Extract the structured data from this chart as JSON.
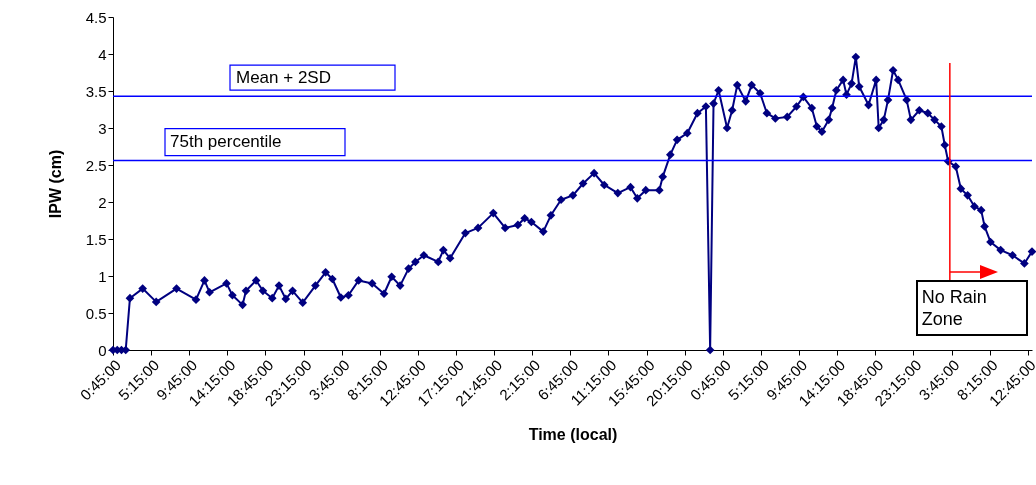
{
  "chart_data": {
    "type": "line",
    "xlabel": "Time (local)",
    "ylabel": "IPW (cm)",
    "marker": "diamond",
    "line_style": "solid",
    "xlim": [
      "2000-01-01T00:45",
      "2000-01-05T13:15"
    ],
    "ylim": [
      0,
      4.5
    ],
    "yticks": [
      0,
      0.5,
      1,
      1.5,
      2,
      2.5,
      3,
      3.5,
      4,
      4.5
    ],
    "xticks": [
      {
        "value": "2000-01-01T00:45",
        "label": "0:45:00"
      },
      {
        "value": "2000-01-01T05:15",
        "label": "5:15:00"
      },
      {
        "value": "2000-01-01T09:45",
        "label": "9:45:00"
      },
      {
        "value": "2000-01-01T14:15",
        "label": "14:15:00"
      },
      {
        "value": "2000-01-01T18:45",
        "label": "18:45:00"
      },
      {
        "value": "2000-01-01T23:15",
        "label": "23:15:00"
      },
      {
        "value": "2000-01-02T03:45",
        "label": "3:45:00"
      },
      {
        "value": "2000-01-02T08:15",
        "label": "8:15:00"
      },
      {
        "value": "2000-01-02T12:45",
        "label": "12:45:00"
      },
      {
        "value": "2000-01-02T17:15",
        "label": "17:15:00"
      },
      {
        "value": "2000-01-02T21:45",
        "label": "21:45:00"
      },
      {
        "value": "2000-01-03T02:15",
        "label": "2:15:00"
      },
      {
        "value": "2000-01-03T06:45",
        "label": "6:45:00"
      },
      {
        "value": "2000-01-03T11:15",
        "label": "11:15:00"
      },
      {
        "value": "2000-01-03T15:45",
        "label": "15:45:00"
      },
      {
        "value": "2000-01-03T20:15",
        "label": "20:15:00"
      },
      {
        "value": "2000-01-04T00:45",
        "label": "0:45:00"
      },
      {
        "value": "2000-01-04T05:15",
        "label": "5:15:00"
      },
      {
        "value": "2000-01-04T09:45",
        "label": "9:45:00"
      },
      {
        "value": "2000-01-04T14:15",
        "label": "14:15:00"
      },
      {
        "value": "2000-01-04T18:45",
        "label": "18:45:00"
      },
      {
        "value": "2000-01-04T23:15",
        "label": "23:15:00"
      },
      {
        "value": "2000-01-05T03:45",
        "label": "3:45:00"
      },
      {
        "value": "2000-01-05T08:15",
        "label": "8:15:00"
      },
      {
        "value": "2000-01-05T12:45",
        "label": "12:45:00"
      }
    ],
    "series": [
      {
        "color": "#000080",
        "x": [
          "2000-01-01T00:45",
          "2000-01-01T01:15",
          "2000-01-01T01:45",
          "2000-01-01T02:15",
          "2000-01-01T02:45",
          "2000-01-01T04:15",
          "2000-01-01T05:51",
          "2000-01-01T08:15",
          "2000-01-01T10:33",
          "2000-01-01T11:33",
          "2000-01-01T12:09",
          "2000-01-01T14:09",
          "2000-01-01T14:51",
          "2000-01-01T16:03",
          "2000-01-01T16:27",
          "2000-01-01T17:39",
          "2000-01-01T18:27",
          "2000-01-01T19:33",
          "2000-01-01T20:21",
          "2000-01-01T21:09",
          "2000-01-01T21:57",
          "2000-01-01T23:09",
          "2000-01-02T00:39",
          "2000-01-02T01:51",
          "2000-01-02T02:39",
          "2000-01-02T03:39",
          "2000-01-02T04:33",
          "2000-01-02T05:45",
          "2000-01-02T07:21",
          "2000-01-02T08:45",
          "2000-01-02T09:39",
          "2000-01-02T10:39",
          "2000-01-02T11:39",
          "2000-01-02T12:27",
          "2000-01-02T13:27",
          "2000-01-02T15:09",
          "2000-01-02T15:45",
          "2000-01-02T16:33",
          "2000-01-02T18:21",
          "2000-01-02T19:51",
          "2000-01-02T21:39",
          "2000-01-02T23:03",
          "2000-01-03T00:33",
          "2000-01-03T01:21",
          "2000-01-03T02:09",
          "2000-01-03T03:33",
          "2000-01-03T04:27",
          "2000-01-03T05:39",
          "2000-01-03T07:03",
          "2000-01-03T08:15",
          "2000-01-03T09:33",
          "2000-01-03T10:45",
          "2000-01-03T12:21",
          "2000-01-03T13:51",
          "2000-01-03T14:39",
          "2000-01-03T15:39",
          "2000-01-03T17:15",
          "2000-01-03T17:39",
          "2000-01-03T18:33",
          "2000-01-03T19:21",
          "2000-01-03T20:33",
          "2000-01-03T21:45",
          "2000-01-03T22:45",
          "2000-01-03T23:15",
          "2000-01-03T23:39",
          "2000-01-04T00:15",
          "2000-01-04T01:15",
          "2000-01-04T01:51",
          "2000-01-04T02:27",
          "2000-01-04T03:27",
          "2000-01-04T04:09",
          "2000-01-04T05:09",
          "2000-01-04T05:57",
          "2000-01-04T06:57",
          "2000-01-04T08:21",
          "2000-01-04T09:27",
          "2000-01-04T10:15",
          "2000-01-04T11:15",
          "2000-01-04T11:51",
          "2000-01-04T12:27",
          "2000-01-04T13:15",
          "2000-01-04T13:39",
          "2000-01-04T14:09",
          "2000-01-04T14:57",
          "2000-01-04T15:21",
          "2000-01-04T15:57",
          "2000-01-04T16:27",
          "2000-01-04T16:51",
          "2000-01-04T17:57",
          "2000-01-04T18:51",
          "2000-01-04T19:09",
          "2000-01-04T19:45",
          "2000-01-04T20:15",
          "2000-01-04T20:51",
          "2000-01-04T21:27",
          "2000-01-04T22:27",
          "2000-01-04T22:57",
          "2000-01-04T23:57",
          "2000-01-05T00:57",
          "2000-01-05T01:45",
          "2000-01-05T02:33",
          "2000-01-05T02:57",
          "2000-01-05T03:21",
          "2000-01-05T04:15",
          "2000-01-05T04:51",
          "2000-01-05T05:39",
          "2000-01-05T06:27",
          "2000-01-05T07:15",
          "2000-01-05T07:39",
          "2000-01-05T08:21",
          "2000-01-05T09:33",
          "2000-01-05T10:57",
          "2000-01-05T12:21",
          "2000-01-05T13:15"
        ],
        "values": [
          0,
          0,
          0,
          0,
          0.7,
          0.83,
          0.65,
          0.83,
          0.68,
          0.94,
          0.78,
          0.9,
          0.74,
          0.61,
          0.8,
          0.94,
          0.8,
          0.7,
          0.87,
          0.69,
          0.8,
          0.64,
          0.87,
          1.05,
          0.96,
          0.71,
          0.74,
          0.94,
          0.9,
          0.76,
          0.99,
          0.87,
          1.1,
          1.19,
          1.28,
          1.19,
          1.35,
          1.24,
          1.58,
          1.65,
          1.85,
          1.65,
          1.69,
          1.78,
          1.73,
          1.6,
          1.82,
          2.03,
          2.09,
          2.25,
          2.39,
          2.23,
          2.12,
          2.2,
          2.05,
          2.16,
          2.16,
          2.34,
          2.64,
          2.84,
          2.93,
          3.2,
          3.29,
          0,
          3.33,
          3.51,
          3.0,
          3.24,
          3.58,
          3.36,
          3.58,
          3.47,
          3.2,
          3.13,
          3.15,
          3.29,
          3.42,
          3.27,
          3.02,
          2.95,
          3.11,
          3.27,
          3.51,
          3.65,
          3.45,
          3.6,
          3.96,
          3.56,
          3.31,
          3.65,
          3.0,
          3.11,
          3.38,
          3.78,
          3.65,
          3.38,
          3.11,
          3.24,
          3.2,
          3.11,
          3.02,
          2.77,
          2.55,
          2.48,
          2.18,
          2.09,
          1.94,
          1.89,
          1.67,
          1.46,
          1.35,
          1.28,
          1.17,
          1.33
        ]
      }
    ],
    "ref_lines": [
      {
        "axis": "y",
        "value": 3.43,
        "label": "Mean + 2SD",
        "color": "#0000ff"
      },
      {
        "axis": "y",
        "value": 2.56,
        "label": "75th percentile",
        "color": "#0000ff"
      },
      {
        "axis": "x",
        "value": "2000-01-05T03:33",
        "label": "No Rain Zone",
        "color": "#ff0000"
      }
    ]
  }
}
